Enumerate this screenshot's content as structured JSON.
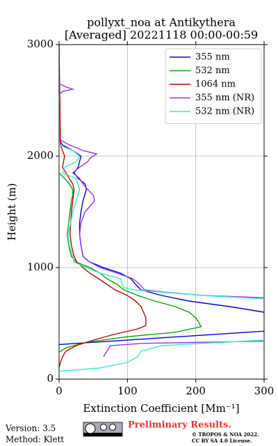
{
  "chart_data": {
    "type": "line",
    "title": "pollyxt_noa at Antikythera",
    "subtitle": "[Averaged] 20221118 00:00-00:59",
    "x_label": "Extinction Coefficient [Mm⁻¹]",
    "y_label": "Height (m)",
    "xlim": [
      0,
      300
    ],
    "ylim": [
      0,
      3000
    ],
    "xticks": [
      0,
      100,
      200,
      300
    ],
    "yticks": [
      0,
      1000,
      2000,
      3000
    ],
    "grid": true,
    "legend": "upper right",
    "series": [
      {
        "name": "355 nm",
        "color": "#0000dd",
        "y": [
          3000,
          2150,
          2100,
          2050,
          2000,
          1950,
          1900,
          1850,
          1800,
          1750,
          1700,
          1600,
          1500,
          1400,
          1300,
          1200,
          1100,
          1050,
          1000,
          950,
          900,
          850,
          800,
          750,
          700,
          650,
          600,
          500,
          430,
          310
        ],
        "x": [
          0,
          0,
          5,
          20,
          32,
          30,
          28,
          22,
          28,
          38,
          40,
          35,
          32,
          30,
          30,
          32,
          35,
          45,
          65,
          90,
          105,
          112,
          120,
          150,
          190,
          250,
          300,
          450,
          300,
          0
        ]
      },
      {
        "name": "532 nm",
        "color": "#00aa00",
        "y": [
          3000,
          1850,
          1800,
          1750,
          1700,
          1650,
          1600,
          1500,
          1400,
          1300,
          1200,
          1100,
          1050,
          1000,
          950,
          900,
          850,
          800,
          750,
          700,
          650,
          600,
          550,
          470,
          420,
          380,
          330,
          280,
          240
        ],
        "x": [
          0,
          0,
          8,
          15,
          20,
          20,
          18,
          16,
          14,
          12,
          14,
          18,
          25,
          45,
          60,
          70,
          85,
          95,
          115,
          140,
          170,
          190,
          200,
          208,
          170,
          100,
          40,
          10,
          0
        ]
      },
      {
        "name": "1064 nm",
        "color": "#cc0000",
        "y": [
          3000,
          2100,
          2000,
          1900,
          1850,
          1800,
          1750,
          1700,
          1600,
          1500,
          1400,
          1300,
          1200,
          1100,
          1050,
          1000,
          950,
          900,
          850,
          800,
          750,
          700,
          650,
          550,
          480,
          450,
          400,
          350,
          300,
          250,
          200,
          150,
          100
        ],
        "x": [
          0,
          2,
          8,
          5,
          10,
          15,
          20,
          22,
          20,
          18,
          17,
          16,
          18,
          22,
          26,
          35,
          45,
          58,
          70,
          82,
          100,
          112,
          120,
          127,
          127,
          115,
          80,
          50,
          25,
          10,
          5,
          2,
          0
        ]
      },
      {
        "name": "355 nm (NR)",
        "color": "#9933ee",
        "y": [
          2650,
          2620,
          2600,
          2580,
          2550,
          2150,
          2100,
          2050,
          2020,
          2000,
          1980,
          1950,
          1900,
          1850,
          1800,
          1750,
          1700,
          1650,
          1600,
          1550,
          1500,
          1400,
          1300,
          1200,
          1100,
          1050,
          1000,
          950,
          900,
          850,
          800,
          780,
          750,
          730,
          700,
          340,
          320,
          300,
          250,
          200
        ],
        "x": [
          0,
          10,
          20,
          5,
          0,
          0,
          15,
          35,
          55,
          50,
          45,
          42,
          30,
          20,
          30,
          35,
          42,
          50,
          52,
          45,
          38,
          32,
          30,
          32,
          35,
          45,
          60,
          85,
          108,
          118,
          125,
          155,
          210,
          300,
          500,
          300,
          120,
          75,
          70,
          65
        ]
      },
      {
        "name": "532 nm (NR)",
        "color": "#33eecc",
        "y": [
          2100,
          2050,
          2000,
          1950,
          1900,
          1850,
          1800,
          1700,
          1600,
          1500,
          1400,
          1300,
          1200,
          1100,
          1050,
          1000,
          950,
          900,
          850,
          820,
          800,
          780,
          750,
          720,
          700,
          350,
          300,
          250,
          200,
          150,
          100,
          70
        ],
        "x": [
          0,
          20,
          30,
          25,
          8,
          5,
          25,
          30,
          25,
          20,
          17,
          13,
          15,
          20,
          22,
          40,
          60,
          90,
          92,
          95,
          110,
          150,
          210,
          300,
          500,
          300,
          150,
          120,
          115,
          100,
          60,
          0
        ]
      }
    ]
  },
  "footer": {
    "version": "Version: 3.5",
    "method": "Method: Klett",
    "status": "Preliminary Results.",
    "copyright": "© TROPOS & NOA 2022.",
    "license": "CC BY SA 4.0 License."
  }
}
